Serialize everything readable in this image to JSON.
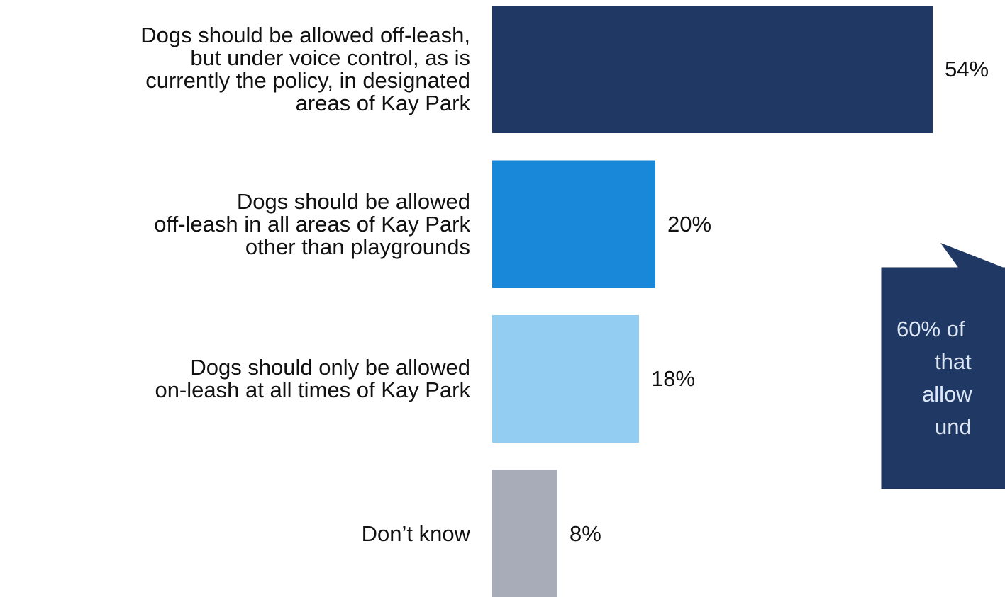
{
  "chart_data": {
    "type": "bar",
    "orientation": "horizontal",
    "categories": [
      "Dogs should be allowed off-leash,\nbut under voice control, as is\ncurrently the policy, in designated\nareas of Kay Park",
      "Dogs should be allowed\noff-leash in all areas of Kay Park\nother than playgrounds",
      "Dogs should only be allowed\non-leash at all times of Kay Park",
      "Don’t know"
    ],
    "values": [
      54,
      20,
      18,
      8
    ],
    "value_labels": [
      "54%",
      "20%",
      "18%",
      "8%"
    ],
    "colors": [
      "#1f3864",
      "#1a88d8",
      "#93cdf2",
      "#a8abb8"
    ],
    "xlim": [
      0,
      54
    ],
    "annotation": {
      "lines": [
        "60% of",
        "that",
        "allow",
        "und"
      ],
      "color": "#1f3864"
    }
  }
}
